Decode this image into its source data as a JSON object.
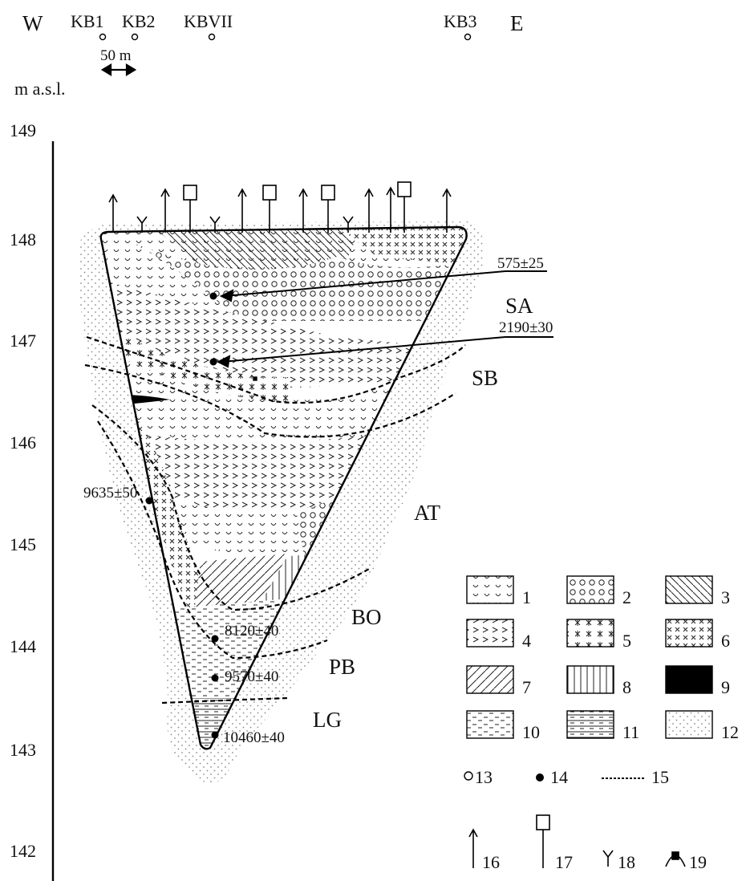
{
  "header": {
    "west": "W",
    "east": "E",
    "boreholes": [
      "KB1",
      "KB2",
      "KBVII",
      "KB3"
    ],
    "scale_label": "50 m",
    "unit": "m a.s.l."
  },
  "axis": {
    "ticks": [
      "149",
      "148",
      "147",
      "146",
      "145",
      "144",
      "143",
      "142"
    ]
  },
  "zones": [
    "SA",
    "SB",
    "AT",
    "BO",
    "PB",
    "LG"
  ],
  "dates": [
    "575±25",
    "2190±30",
    "9635±50",
    "8120±40",
    "9570±40",
    "10460±40"
  ],
  "legend": {
    "items": [
      "1",
      "2",
      "3",
      "4",
      "5",
      "6",
      "7",
      "8",
      "9",
      "10",
      "11",
      "12",
      "13",
      "14",
      "15",
      "16",
      "17",
      "18",
      "19"
    ]
  },
  "colors": {
    "ink": "#111111",
    "background": "#ffffff",
    "stipple": "#9a9a9a"
  }
}
